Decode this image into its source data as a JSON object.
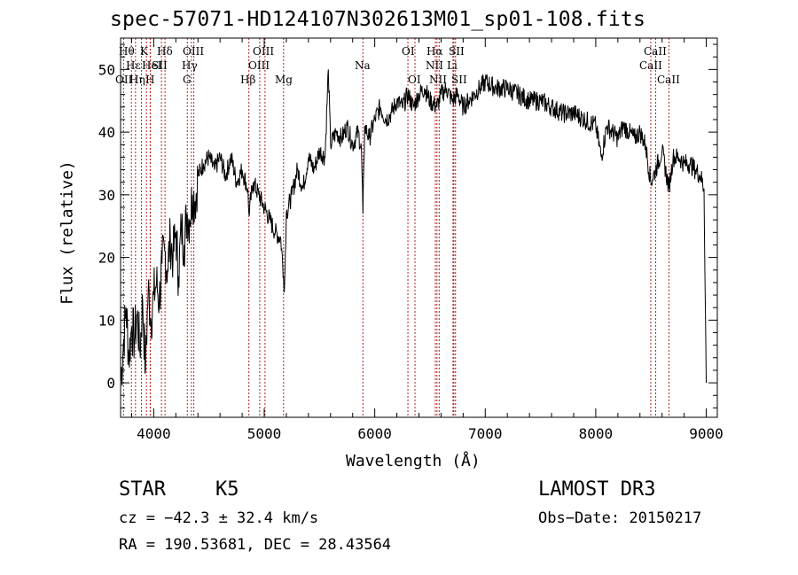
{
  "chart_data": {
    "type": "line",
    "title": "spec-57071-HD124107N302613M01_sp01-108.fits",
    "xlabel": "Wavelength (Å)",
    "ylabel": "Flux (relative)",
    "xlim": [
      3700,
      9100
    ],
    "ylim": [
      -5.5,
      55
    ],
    "xticks": [
      4000,
      5000,
      6000,
      7000,
      8000,
      9000
    ],
    "yticks": [
      0,
      10,
      20,
      30,
      40,
      50
    ],
    "xtick_labels": [
      "4000",
      "5000",
      "6000",
      "7000",
      "8000",
      "9000"
    ],
    "ytick_labels": [
      "0",
      "10",
      "20",
      "30",
      "40",
      "50"
    ],
    "grid": false,
    "series": [
      {
        "name": "spectrum",
        "x": [
          3700,
          3725,
          3750,
          3775,
          3800,
          3825,
          3850,
          3875,
          3900,
          3925,
          3950,
          3975,
          4000,
          4025,
          4050,
          4075,
          4100,
          4125,
          4150,
          4175,
          4200,
          4225,
          4250,
          4275,
          4300,
          4325,
          4350,
          4375,
          4400,
          4450,
          4500,
          4550,
          4600,
          4650,
          4700,
          4750,
          4800,
          4850,
          4861,
          4900,
          4950,
          5000,
          5050,
          5100,
          5150,
          5175,
          5183,
          5200,
          5250,
          5300,
          5350,
          5400,
          5450,
          5500,
          5550,
          5580,
          5600,
          5650,
          5700,
          5750,
          5800,
          5850,
          5880,
          5893,
          5910,
          5950,
          6000,
          6050,
          6100,
          6150,
          6200,
          6250,
          6300,
          6350,
          6400,
          6450,
          6500,
          6563,
          6600,
          6650,
          6700,
          6750,
          6800,
          6850,
          6900,
          6950,
          7000,
          7100,
          7200,
          7300,
          7400,
          7500,
          7600,
          7700,
          7800,
          7900,
          8000,
          8050,
          8100,
          8150,
          8200,
          8250,
          8300,
          8350,
          8400,
          8450,
          8498,
          8542,
          8600,
          8662,
          8700,
          8750,
          8800,
          8850,
          8900,
          8950,
          8980,
          9000
        ],
        "y": [
          0,
          6,
          12,
          4,
          9,
          7,
          11,
          5,
          13,
          2,
          15,
          10,
          14,
          16,
          13,
          19,
          21,
          18,
          23,
          20,
          24,
          17,
          25,
          22,
          27,
          26,
          30,
          29,
          33,
          35,
          36,
          34,
          36,
          33,
          36,
          32,
          34,
          31,
          27,
          32,
          30,
          28,
          26,
          24,
          23,
          17,
          15,
          27,
          30,
          34,
          31,
          36,
          34,
          37,
          36,
          50,
          38,
          40,
          39,
          41,
          38,
          40,
          37,
          27,
          41,
          39,
          42,
          44,
          42,
          43,
          45,
          44,
          46,
          44,
          46,
          47,
          45,
          44,
          46,
          47,
          45,
          46,
          44,
          45,
          46,
          47,
          48,
          47,
          47,
          46,
          45,
          45,
          44,
          43,
          43,
          42,
          41,
          36,
          41,
          40,
          39,
          41,
          40,
          39,
          40,
          38,
          32,
          34,
          37,
          31,
          36,
          36,
          35,
          35,
          34,
          33,
          31,
          0
        ]
      }
    ],
    "annotations": [
      "STAR",
      "K5",
      "LAMOST DR3",
      "cz = −42.3 ± 32.4 km/s",
      "Obs−Date: 20150217",
      "RA = 190.53681, DEC =  28.43564"
    ],
    "line_markers": [
      {
        "label": "Hθ",
        "wavelength": 3798
      },
      {
        "label": "OII",
        "wavelength": 3727
      },
      {
        "label": "Hη",
        "wavelength": 3835
      },
      {
        "label": "Hε",
        "wavelength": 3889
      },
      {
        "label": "K",
        "wavelength": 3934
      },
      {
        "label": "HeI",
        "wavelength": 3970
      },
      {
        "label": "H",
        "wavelength": 3968
      },
      {
        "label": "Hδ",
        "wavelength": 4102
      },
      {
        "label": "SII",
        "wavelength": 4070
      },
      {
        "label": "OIII",
        "wavelength": 4363
      },
      {
        "label": "Hγ",
        "wavelength": 4341
      },
      {
        "label": "G",
        "wavelength": 4304
      },
      {
        "label": "Hβ",
        "wavelength": 4861
      },
      {
        "label": "OIII",
        "wavelength": 4959
      },
      {
        "label": "OIII",
        "wavelength": 5007
      },
      {
        "label": "Mg",
        "wavelength": 5175
      },
      {
        "label": "Na",
        "wavelength": 5893
      },
      {
        "label": "OI",
        "wavelength": 6300
      },
      {
        "label": "OI",
        "wavelength": 6364
      },
      {
        "label": "Hα",
        "wavelength": 6563
      },
      {
        "label": "NII",
        "wavelength": 6548
      },
      {
        "label": "NII",
        "wavelength": 6583
      },
      {
        "label": "SII",
        "wavelength": 6716
      },
      {
        "label": "SII",
        "wavelength": 6731
      },
      {
        "label": "Li",
        "wavelength": 6708
      },
      {
        "label": "CaII",
        "wavelength": 8498
      },
      {
        "label": "CaII",
        "wavelength": 8542
      },
      {
        "label": "CaII",
        "wavelength": 8662
      }
    ],
    "marker_color": "#b22222"
  },
  "info": {
    "object_class": "STAR",
    "subclass": "K5",
    "survey": "LAMOST DR3",
    "redshift": "cz = −42.3 ± 32.4 km/s",
    "obs_date": "Obs−Date: 20150217",
    "coords": "RA = 190.53681, DEC =  28.43564"
  }
}
